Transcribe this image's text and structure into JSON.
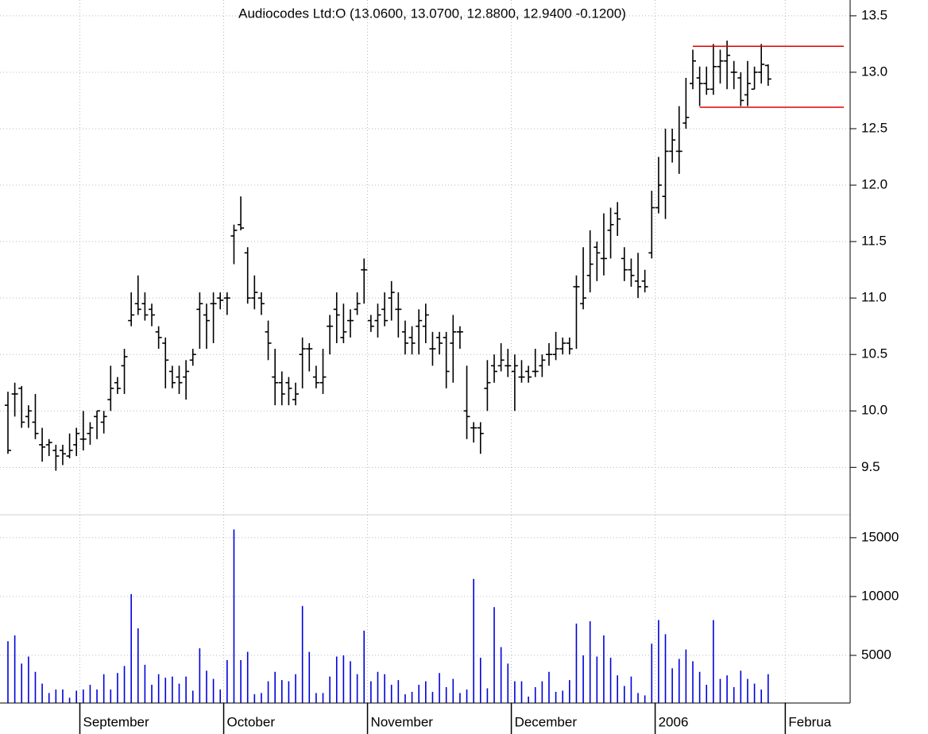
{
  "chart_data": [
    {
      "type": "ohlc",
      "title": "Audiocodes Ltd:O (13.0600, 13.0700, 12.8800, 12.9400 -0.1200)",
      "categories": [
        null,
        null,
        null,
        null,
        null,
        null,
        null,
        null,
        null,
        null,
        null,
        "September",
        null,
        null,
        null,
        null,
        null,
        null,
        null,
        null,
        null,
        null,
        null,
        null,
        null,
        null,
        null,
        null,
        null,
        null,
        null,
        null,
        "October",
        null,
        null,
        null,
        null,
        null,
        null,
        null,
        null,
        null,
        null,
        null,
        null,
        null,
        null,
        null,
        null,
        null,
        null,
        null,
        null,
        "November",
        null,
        null,
        null,
        null,
        null,
        null,
        null,
        null,
        null,
        null,
        null,
        null,
        null,
        null,
        null,
        null,
        null,
        null,
        null,
        null,
        "December",
        null,
        null,
        null,
        null,
        null,
        null,
        null,
        null,
        null,
        null,
        null,
        null,
        null,
        null,
        null,
        null,
        null,
        null,
        null,
        null,
        "2006",
        null,
        null,
        null,
        null,
        null,
        null,
        null,
        null,
        null,
        null,
        null,
        null,
        null,
        null,
        null,
        null,
        null,
        null,
        "Februa"
      ],
      "open": [
        10.05,
        10.15,
        10.2,
        9.95,
        9.9,
        9.7,
        9.7,
        9.65,
        9.65,
        9.6,
        9.7,
        9.75,
        9.8,
        9.95,
        9.9,
        10.1,
        10.25,
        10.4,
        10.8,
        10.95,
        10.95,
        10.9,
        10.7,
        10.6,
        10.35,
        10.3,
        10.3,
        10.45,
        10.9,
        10.85,
        10.95,
        11.0,
        11.0,
        11.55,
        11.65,
        11.4,
        11.0,
        11.0,
        10.7,
        10.3,
        10.25,
        10.25,
        10.1,
        10.5,
        10.55,
        10.3,
        10.25,
        10.75,
        10.9,
        10.65,
        10.8,
        10.9,
        11.25,
        10.8,
        10.8,
        10.9,
        11.0,
        10.9,
        10.7,
        10.65,
        10.75,
        10.75,
        10.55,
        10.65,
        10.65,
        10.6,
        10.7,
        10.0,
        9.85,
        9.85,
        10.2,
        10.4,
        10.4,
        10.4,
        10.35,
        10.3,
        10.35,
        10.35,
        10.4,
        10.5,
        10.5,
        10.55,
        10.6,
        11.1,
        10.95,
        11.2,
        11.45,
        11.35,
        11.6,
        11.75,
        11.35,
        11.25,
        11.15,
        11.15,
        11.4,
        11.8,
        11.9,
        12.3,
        12.3,
        12.55,
        12.9,
        12.95,
        12.9,
        12.85,
        13.05,
        13.1,
        13.0,
        12.95,
        12.8,
        12.85,
        13.0,
        13.06,
        null,
        null,
        null
      ],
      "high": [
        10.17,
        10.25,
        10.22,
        10.05,
        10.15,
        9.85,
        9.75,
        9.7,
        9.7,
        9.8,
        9.85,
        10.0,
        9.9,
        10.0,
        10.0,
        10.4,
        10.3,
        10.55,
        11.05,
        11.2,
        11.05,
        10.95,
        10.75,
        10.65,
        10.4,
        10.4,
        10.45,
        10.55,
        11.05,
        10.95,
        11.05,
        11.05,
        11.05,
        11.65,
        11.9,
        11.45,
        11.2,
        11.05,
        10.8,
        10.55,
        10.35,
        10.3,
        10.25,
        10.65,
        10.6,
        10.4,
        10.55,
        10.85,
        11.05,
        10.95,
        10.9,
        11.05,
        11.35,
        10.85,
        10.95,
        11.05,
        11.15,
        11.05,
        10.8,
        10.75,
        10.9,
        10.95,
        10.7,
        10.7,
        10.7,
        10.85,
        10.75,
        10.4,
        9.9,
        9.9,
        10.45,
        10.5,
        10.6,
        10.55,
        10.5,
        10.45,
        10.4,
        10.55,
        10.5,
        10.6,
        10.7,
        10.65,
        10.65,
        11.2,
        11.45,
        11.6,
        11.5,
        11.75,
        11.8,
        11.85,
        11.45,
        11.35,
        11.4,
        11.25,
        11.95,
        12.25,
        12.5,
        12.5,
        12.7,
        12.95,
        13.2,
        13.05,
        13.05,
        13.25,
        13.2,
        13.28,
        13.1,
        13.0,
        13.1,
        13.05,
        13.25,
        13.07,
        null,
        null,
        null
      ],
      "low": [
        9.62,
        9.95,
        9.85,
        9.85,
        9.75,
        9.55,
        9.6,
        9.47,
        9.52,
        9.58,
        9.6,
        9.65,
        9.7,
        9.75,
        9.8,
        10.0,
        10.15,
        10.15,
        10.75,
        10.85,
        10.8,
        10.75,
        10.55,
        10.2,
        10.2,
        10.15,
        10.1,
        10.4,
        10.55,
        10.55,
        10.6,
        10.9,
        10.85,
        11.3,
        11.6,
        10.95,
        10.9,
        10.85,
        10.45,
        10.05,
        10.05,
        10.05,
        10.05,
        10.2,
        10.35,
        10.2,
        10.15,
        10.5,
        10.6,
        10.6,
        10.65,
        10.85,
        10.95,
        10.7,
        10.65,
        10.75,
        10.8,
        10.65,
        10.5,
        10.5,
        10.5,
        10.6,
        10.4,
        10.5,
        10.2,
        10.25,
        10.55,
        9.75,
        9.72,
        9.62,
        10.0,
        10.25,
        10.35,
        10.3,
        10.0,
        10.25,
        10.25,
        10.3,
        10.3,
        10.4,
        10.45,
        10.5,
        10.5,
        10.55,
        10.9,
        11.05,
        11.15,
        11.2,
        11.35,
        11.55,
        11.15,
        11.1,
        11.0,
        11.05,
        11.35,
        11.75,
        11.7,
        12.2,
        12.1,
        12.5,
        12.85,
        12.7,
        12.8,
        12.8,
        12.9,
        12.85,
        12.85,
        12.7,
        12.7,
        12.85,
        12.9,
        12.88,
        null,
        null,
        null
      ],
      "close": [
        9.65,
        10.15,
        9.9,
        10.0,
        9.8,
        9.68,
        9.72,
        9.6,
        9.62,
        9.65,
        9.8,
        9.75,
        9.85,
        10.0,
        9.95,
        10.2,
        10.2,
        10.48,
        10.85,
        10.9,
        10.85,
        10.85,
        10.65,
        10.45,
        10.25,
        10.25,
        10.35,
        10.5,
        10.95,
        10.8,
        10.95,
        10.98,
        11.0,
        11.6,
        11.62,
        11.0,
        11.05,
        10.95,
        10.6,
        10.25,
        10.15,
        10.2,
        10.15,
        10.55,
        10.55,
        10.25,
        10.3,
        10.75,
        10.85,
        10.7,
        10.8,
        10.95,
        11.25,
        10.75,
        10.85,
        10.8,
        11.05,
        10.9,
        10.6,
        10.6,
        10.8,
        10.85,
        10.55,
        10.6,
        10.35,
        10.7,
        10.7,
        9.95,
        9.85,
        9.8,
        10.25,
        10.35,
        10.45,
        10.4,
        10.4,
        10.3,
        10.3,
        10.35,
        10.45,
        10.5,
        10.55,
        10.6,
        10.55,
        11.1,
        11.0,
        11.3,
        11.4,
        11.35,
        11.65,
        11.7,
        11.25,
        11.2,
        11.1,
        11.1,
        11.8,
        12.0,
        12.3,
        12.4,
        12.3,
        12.6,
        13.1,
        12.9,
        12.85,
        13.05,
        13.1,
        13.15,
        13.0,
        12.75,
        12.9,
        13.0,
        13.07,
        12.94,
        null,
        null,
        null
      ],
      "color": "#000000",
      "levels": [
        13.23,
        12.69
      ],
      "level_color": "#e00000",
      "ylim": [
        9.08,
        13.64
      ],
      "yticks": [
        9.5,
        {
          "value": 10,
          "label": "10.0"
        },
        10.5,
        {
          "value": 11,
          "label": "11.0"
        },
        11.5,
        {
          "value": 12,
          "label": "12.0"
        },
        12.5,
        {
          "value": 13,
          "label": "13.0"
        },
        13.5
      ],
      "grid": true
    },
    {
      "type": "bar",
      "values": [
        6200,
        6700,
        4300,
        4900,
        3600,
        2600,
        1800,
        2100,
        2100,
        1400,
        2000,
        2100,
        2500,
        2100,
        3400,
        2100,
        3500,
        4100,
        10200,
        7300,
        4200,
        2500,
        3400,
        3100,
        3200,
        2600,
        3200,
        2000,
        5600,
        3700,
        3000,
        2100,
        4600,
        15700,
        4600,
        5300,
        1700,
        1800,
        2800,
        3600,
        2900,
        2800,
        3400,
        9200,
        5300,
        1800,
        1800,
        3200,
        4900,
        5000,
        4500,
        3400,
        7100,
        2800,
        3600,
        3400,
        2500,
        2900,
        1700,
        1900,
        2500,
        2800,
        1900,
        3500,
        2300,
        3000,
        1800,
        2100,
        11500,
        4800,
        2200,
        9100,
        5700,
        4300,
        2800,
        2800,
        1500,
        2300,
        2800,
        3600,
        1900,
        2000,
        2900,
        7700,
        5000,
        7900,
        4900,
        6700,
        4800,
        3300,
        2400,
        3200,
        1800,
        1600,
        6000,
        8000,
        6800,
        3900,
        4700,
        5500,
        4500,
        3600,
        2500,
        8000,
        3000,
        3300,
        2300,
        3700,
        3000,
        2600,
        2100,
        3400,
        null,
        null,
        null
      ],
      "color": "#0000dd",
      "ylim": [
        950,
        16950
      ],
      "yticks": [
        5000,
        10000,
        15000
      ],
      "grid": true
    }
  ]
}
